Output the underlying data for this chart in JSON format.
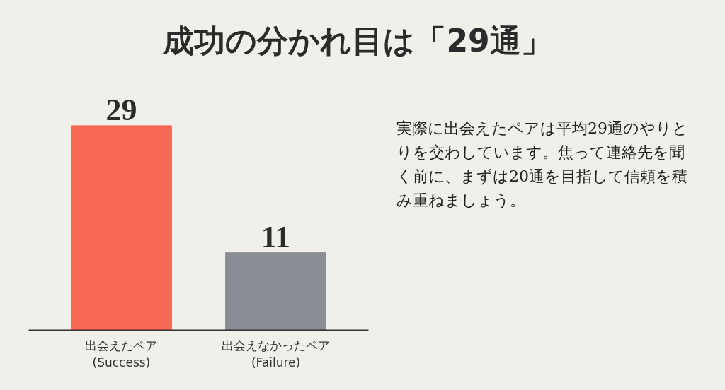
{
  "chart_data": {
    "type": "bar",
    "title": "成功の分かれ目は「29通」",
    "categories": [
      "出会えたペア\n(Success)",
      "出会えなかったペア\n(Failure)"
    ],
    "values": [
      29,
      11
    ],
    "colors": [
      "#f96655",
      "#8a8d93"
    ],
    "data_labels": true,
    "annotations": [
      "実際に出会えたペアは平均29通のやりとりを交わしています。焦って連絡先を聞く前に、まずは20通を目指して信頼を積み重ねましょう。"
    ]
  }
}
